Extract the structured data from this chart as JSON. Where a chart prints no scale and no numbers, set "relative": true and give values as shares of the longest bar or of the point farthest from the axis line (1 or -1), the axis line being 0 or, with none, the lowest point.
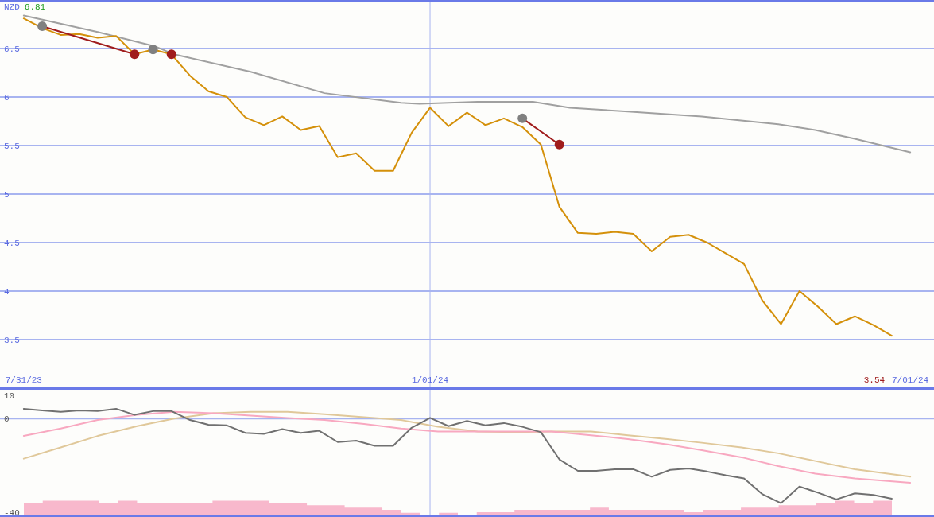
{
  "chart_data": [
    {
      "type": "line",
      "ylabel": "NZD",
      "annotations": [
        "6.81",
        "3.54"
      ],
      "xlim": [
        "2023-07-22",
        "2024-07-10"
      ],
      "xticks": [
        {
          "value": "2023-07-31",
          "label": "7/31/23"
        },
        {
          "value": "2024-01-01",
          "label": "1/01/24"
        },
        {
          "value": "2024-07-01",
          "label": "7/01/24"
        }
      ],
      "ylim": [
        3,
        7
      ],
      "yticks": [
        3.5,
        4,
        4.5,
        5,
        5.5,
        6,
        6.5
      ],
      "grid": "y",
      "ref_lines": [
        {
          "axis": "x",
          "value": "2024-01-01",
          "color": "#a8b4f0"
        }
      ],
      "series": [
        {
          "color": "#a0a0a0",
          "x": [
            "2023-07-31",
            "2023-08-28",
            "2023-09-19",
            "2023-09-26",
            "2023-10-25",
            "2023-11-22",
            "2023-12-21",
            "2023-12-28",
            "2024-01-19",
            "2024-02-09",
            "2024-02-23",
            "2024-03-16",
            "2024-04-13",
            "2024-05-12",
            "2024-05-26",
            "2024-06-10",
            "2024-07-01"
          ],
          "values": [
            6.84,
            6.67,
            6.52,
            6.44,
            6.26,
            6.04,
            5.94,
            5.93,
            5.95,
            5.95,
            5.89,
            5.85,
            5.8,
            5.72,
            5.66,
            5.57,
            5.43
          ]
        },
        {
          "color": "#d4900a",
          "x": [
            "2023-07-31",
            "2023-08-07",
            "2023-08-14",
            "2023-08-21",
            "2023-08-28",
            "2023-09-04",
            "2023-09-11",
            "2023-09-18",
            "2023-09-25",
            "2023-10-02",
            "2023-10-09",
            "2023-10-16",
            "2023-10-23",
            "2023-10-30",
            "2023-11-06",
            "2023-11-13",
            "2023-11-20",
            "2023-11-27",
            "2023-12-04",
            "2023-12-11",
            "2023-12-18",
            "2023-12-25",
            "2024-01-01",
            "2024-01-08",
            "2024-01-15",
            "2024-01-22",
            "2024-01-29",
            "2024-02-05",
            "2024-02-12",
            "2024-02-19",
            "2024-02-26",
            "2024-03-04",
            "2024-03-11",
            "2024-03-18",
            "2024-03-25",
            "2024-04-01",
            "2024-04-08",
            "2024-04-15",
            "2024-04-22",
            "2024-04-29",
            "2024-05-06",
            "2024-05-13",
            "2024-05-20",
            "2024-05-27",
            "2024-06-03",
            "2024-06-10",
            "2024-06-17",
            "2024-06-24"
          ],
          "values": [
            6.81,
            6.71,
            6.64,
            6.65,
            6.61,
            6.63,
            6.44,
            6.49,
            6.44,
            6.22,
            6.06,
            6.0,
            5.79,
            5.71,
            5.8,
            5.66,
            5.7,
            5.38,
            5.42,
            5.24,
            5.24,
            5.63,
            5.89,
            5.7,
            5.84,
            5.71,
            5.78,
            5.69,
            5.51,
            4.87,
            4.6,
            4.59,
            4.61,
            4.59,
            4.41,
            4.56,
            4.58,
            4.5,
            4.39,
            4.28,
            3.9,
            3.66,
            4.0,
            3.84,
            3.66,
            3.74,
            3.65,
            3.54
          ]
        },
        {
          "color": "#a01c1c",
          "x": [
            "2023-08-07",
            "2023-09-11"
          ],
          "values": [
            6.73,
            6.44
          ]
        },
        {
          "color": "#a01c1c",
          "x": [
            "2024-02-05",
            "2024-02-19"
          ],
          "values": [
            5.78,
            5.51
          ]
        },
        {
          "type": "scatter",
          "marker": "circle",
          "color": "#808080",
          "x": [
            "2023-08-07",
            "2023-09-18",
            "2024-02-05"
          ],
          "values": [
            6.73,
            6.49,
            5.78
          ]
        },
        {
          "type": "scatter",
          "marker": "circle",
          "color": "#a01c1c",
          "x": [
            "2023-09-11",
            "2023-09-25",
            "2024-02-19"
          ],
          "values": [
            6.44,
            6.44,
            5.51
          ]
        }
      ]
    },
    {
      "type": "line",
      "xlim": [
        "2023-07-22",
        "2024-07-10"
      ],
      "ylim": [
        -42,
        13
      ],
      "yticks": [
        10,
        0,
        -40
      ],
      "tick_labels": "y",
      "ref_lines": [
        {
          "axis": "y",
          "value": 0,
          "color": "#a8b4f0"
        },
        {
          "axis": "x",
          "value": "2024-01-01",
          "color": "#a8b4f0"
        }
      ],
      "series": [
        {
          "color": "#e0c89a",
          "x": [
            "2023-07-31",
            "2023-08-14",
            "2023-08-28",
            "2023-09-12",
            "2023-09-26",
            "2023-10-11",
            "2023-10-25",
            "2023-11-08",
            "2023-11-22",
            "2023-12-07",
            "2023-12-21",
            "2024-01-04",
            "2024-01-19",
            "2024-02-02",
            "2024-02-16",
            "2024-03-02",
            "2024-03-16",
            "2024-03-31",
            "2024-04-13",
            "2024-04-28",
            "2024-05-12",
            "2024-05-26",
            "2024-06-10",
            "2024-07-01"
          ],
          "values": [
            -17.1,
            -12.3,
            -7.4,
            -3.2,
            0,
            2.3,
            2.9,
            2.9,
            1.9,
            0.6,
            -0.6,
            -3.5,
            -5.5,
            -5.8,
            -5.5,
            -5.5,
            -7.1,
            -8.7,
            -10.3,
            -12.3,
            -14.8,
            -18.1,
            -21.6,
            -24.8
          ]
        },
        {
          "color": "#f8a8c0",
          "x": [
            "2023-07-31",
            "2023-08-14",
            "2023-08-28",
            "2023-09-12",
            "2023-09-26",
            "2023-10-11",
            "2023-10-25",
            "2023-11-08",
            "2023-11-22",
            "2023-12-07",
            "2023-12-21",
            "2024-01-04",
            "2024-01-19",
            "2024-02-02",
            "2024-02-16",
            "2024-03-02",
            "2024-03-16",
            "2024-03-31",
            "2024-04-13",
            "2024-04-28",
            "2024-05-12",
            "2024-05-26",
            "2024-06-10",
            "2024-07-01"
          ],
          "values": [
            -7.4,
            -4.2,
            -0.6,
            1.6,
            2.9,
            2.3,
            1.3,
            0.3,
            -0.6,
            -2.3,
            -4.2,
            -5.5,
            -5.5,
            -5.5,
            -5.5,
            -7.1,
            -8.7,
            -11,
            -13.5,
            -16.5,
            -20.3,
            -23.5,
            -25.5,
            -27.4
          ]
        },
        {
          "color": "#707070",
          "x": [
            "2023-07-31",
            "2023-08-07",
            "2023-08-14",
            "2023-08-21",
            "2023-08-28",
            "2023-09-04",
            "2023-09-11",
            "2023-09-18",
            "2023-09-25",
            "2023-10-02",
            "2023-10-09",
            "2023-10-16",
            "2023-10-23",
            "2023-10-30",
            "2023-11-06",
            "2023-11-13",
            "2023-11-20",
            "2023-11-27",
            "2023-12-04",
            "2023-12-11",
            "2023-12-18",
            "2023-12-25",
            "2024-01-01",
            "2024-01-08",
            "2024-01-15",
            "2024-01-22",
            "2024-01-29",
            "2024-02-05",
            "2024-02-12",
            "2024-02-19",
            "2024-02-26",
            "2024-03-04",
            "2024-03-11",
            "2024-03-18",
            "2024-03-25",
            "2024-04-01",
            "2024-04-08",
            "2024-04-15",
            "2024-04-22",
            "2024-04-29",
            "2024-05-06",
            "2024-05-13",
            "2024-05-20",
            "2024-05-27",
            "2024-06-03",
            "2024-06-10",
            "2024-06-17",
            "2024-06-24"
          ],
          "values": [
            4.2,
            3.5,
            2.9,
            3.5,
            3.2,
            4.2,
            1.6,
            3.2,
            3.2,
            -0.6,
            -2.6,
            -2.9,
            -6.1,
            -6.5,
            -4.5,
            -6.1,
            -5.2,
            -10,
            -9.4,
            -11.6,
            -11.6,
            -3.9,
            0.3,
            -3.2,
            -1,
            -2.9,
            -1.9,
            -3.5,
            -5.8,
            -17.4,
            -22.3,
            -22.3,
            -21.6,
            -21.6,
            -24.8,
            -21.9,
            -21.3,
            -22.6,
            -24.2,
            -25.5,
            -32.3,
            -36.1,
            -29,
            -31.6,
            -34.5,
            -31.9,
            -32.6,
            -34.2
          ]
        }
      ]
    },
    {
      "type": "area",
      "relative": true,
      "tick_labels": false,
      "color": "#f8b8cc",
      "categories": [
        null,
        null,
        null,
        null,
        null,
        null,
        null,
        null,
        null,
        null,
        null,
        null,
        null,
        null,
        null,
        null,
        null,
        null,
        null,
        null,
        null,
        null,
        null,
        null,
        null,
        null,
        null,
        null,
        null,
        null,
        null,
        null,
        null,
        null,
        null,
        null,
        null,
        null,
        null,
        null,
        null,
        null,
        null,
        null,
        null,
        null,
        null
      ],
      "values": [
        0.68,
        0.83,
        0.83,
        0.83,
        0.68,
        0.83,
        0.68,
        0.68,
        0.68,
        0.68,
        0.83,
        0.83,
        0.83,
        0.68,
        0.68,
        0.56,
        0.56,
        0.42,
        0.42,
        0.29,
        0.11,
        0,
        0.11,
        0,
        0.14,
        0.14,
        0.28,
        0.28,
        0.28,
        0.28,
        0.42,
        0.28,
        0.28,
        0.28,
        0.28,
        0.14,
        0.28,
        0.28,
        0.42,
        0.42,
        0.56,
        0.56,
        0.68,
        0.83,
        0.68,
        0.83,
        1
      ]
    }
  ]
}
